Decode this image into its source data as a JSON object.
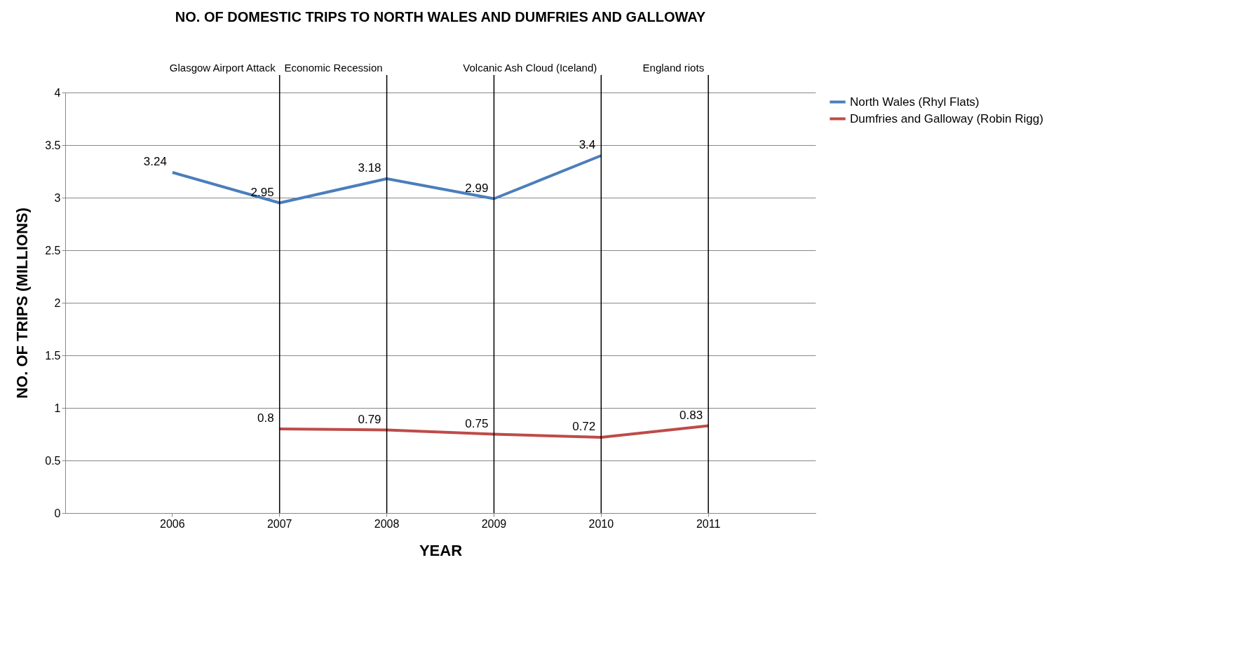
{
  "chart_data": {
    "type": "line",
    "title": "NO. OF DOMESTIC TRIPS TO NORTH WALES AND DUMFRIES AND GALLOWAY",
    "xlabel": "YEAR",
    "ylabel": "NO. OF TRIPS (MILLIONS)",
    "categories": [
      "2006",
      "2007",
      "2008",
      "2009",
      "2010",
      "2011"
    ],
    "series": [
      {
        "name": "North Wales (Rhyl Flats)",
        "color": "#4a7ebb",
        "values": [
          3.24,
          2.95,
          3.18,
          2.99,
          3.4,
          null
        ]
      },
      {
        "name": "Dumfries and Galloway (Robin Rigg)",
        "color": "#be4b48",
        "values": [
          null,
          0.8,
          0.79,
          0.75,
          0.72,
          0.83
        ]
      }
    ],
    "ylim": [
      0,
      4
    ],
    "yticks": [
      0,
      0.5,
      1,
      1.5,
      2,
      2.5,
      3,
      3.5,
      4
    ],
    "grid": "y",
    "legend": "right",
    "data_labels": true,
    "marker": "none",
    "line_style": "solid",
    "ref_lines": [
      {
        "axis": "x",
        "value": "2007",
        "label": "Glasgow Airport Attack",
        "color": "#000000"
      },
      {
        "axis": "x",
        "value": "2008",
        "label": "Economic Recession",
        "color": "#000000"
      },
      {
        "axis": "x",
        "value": "2009",
        "label": null,
        "color": "#000000"
      },
      {
        "axis": "x",
        "value": "2010",
        "label": "Volcanic Ash Cloud (Iceland)",
        "color": "#000000"
      },
      {
        "axis": "x",
        "value": "2011",
        "label": "England riots",
        "color": "#000000"
      }
    ]
  }
}
